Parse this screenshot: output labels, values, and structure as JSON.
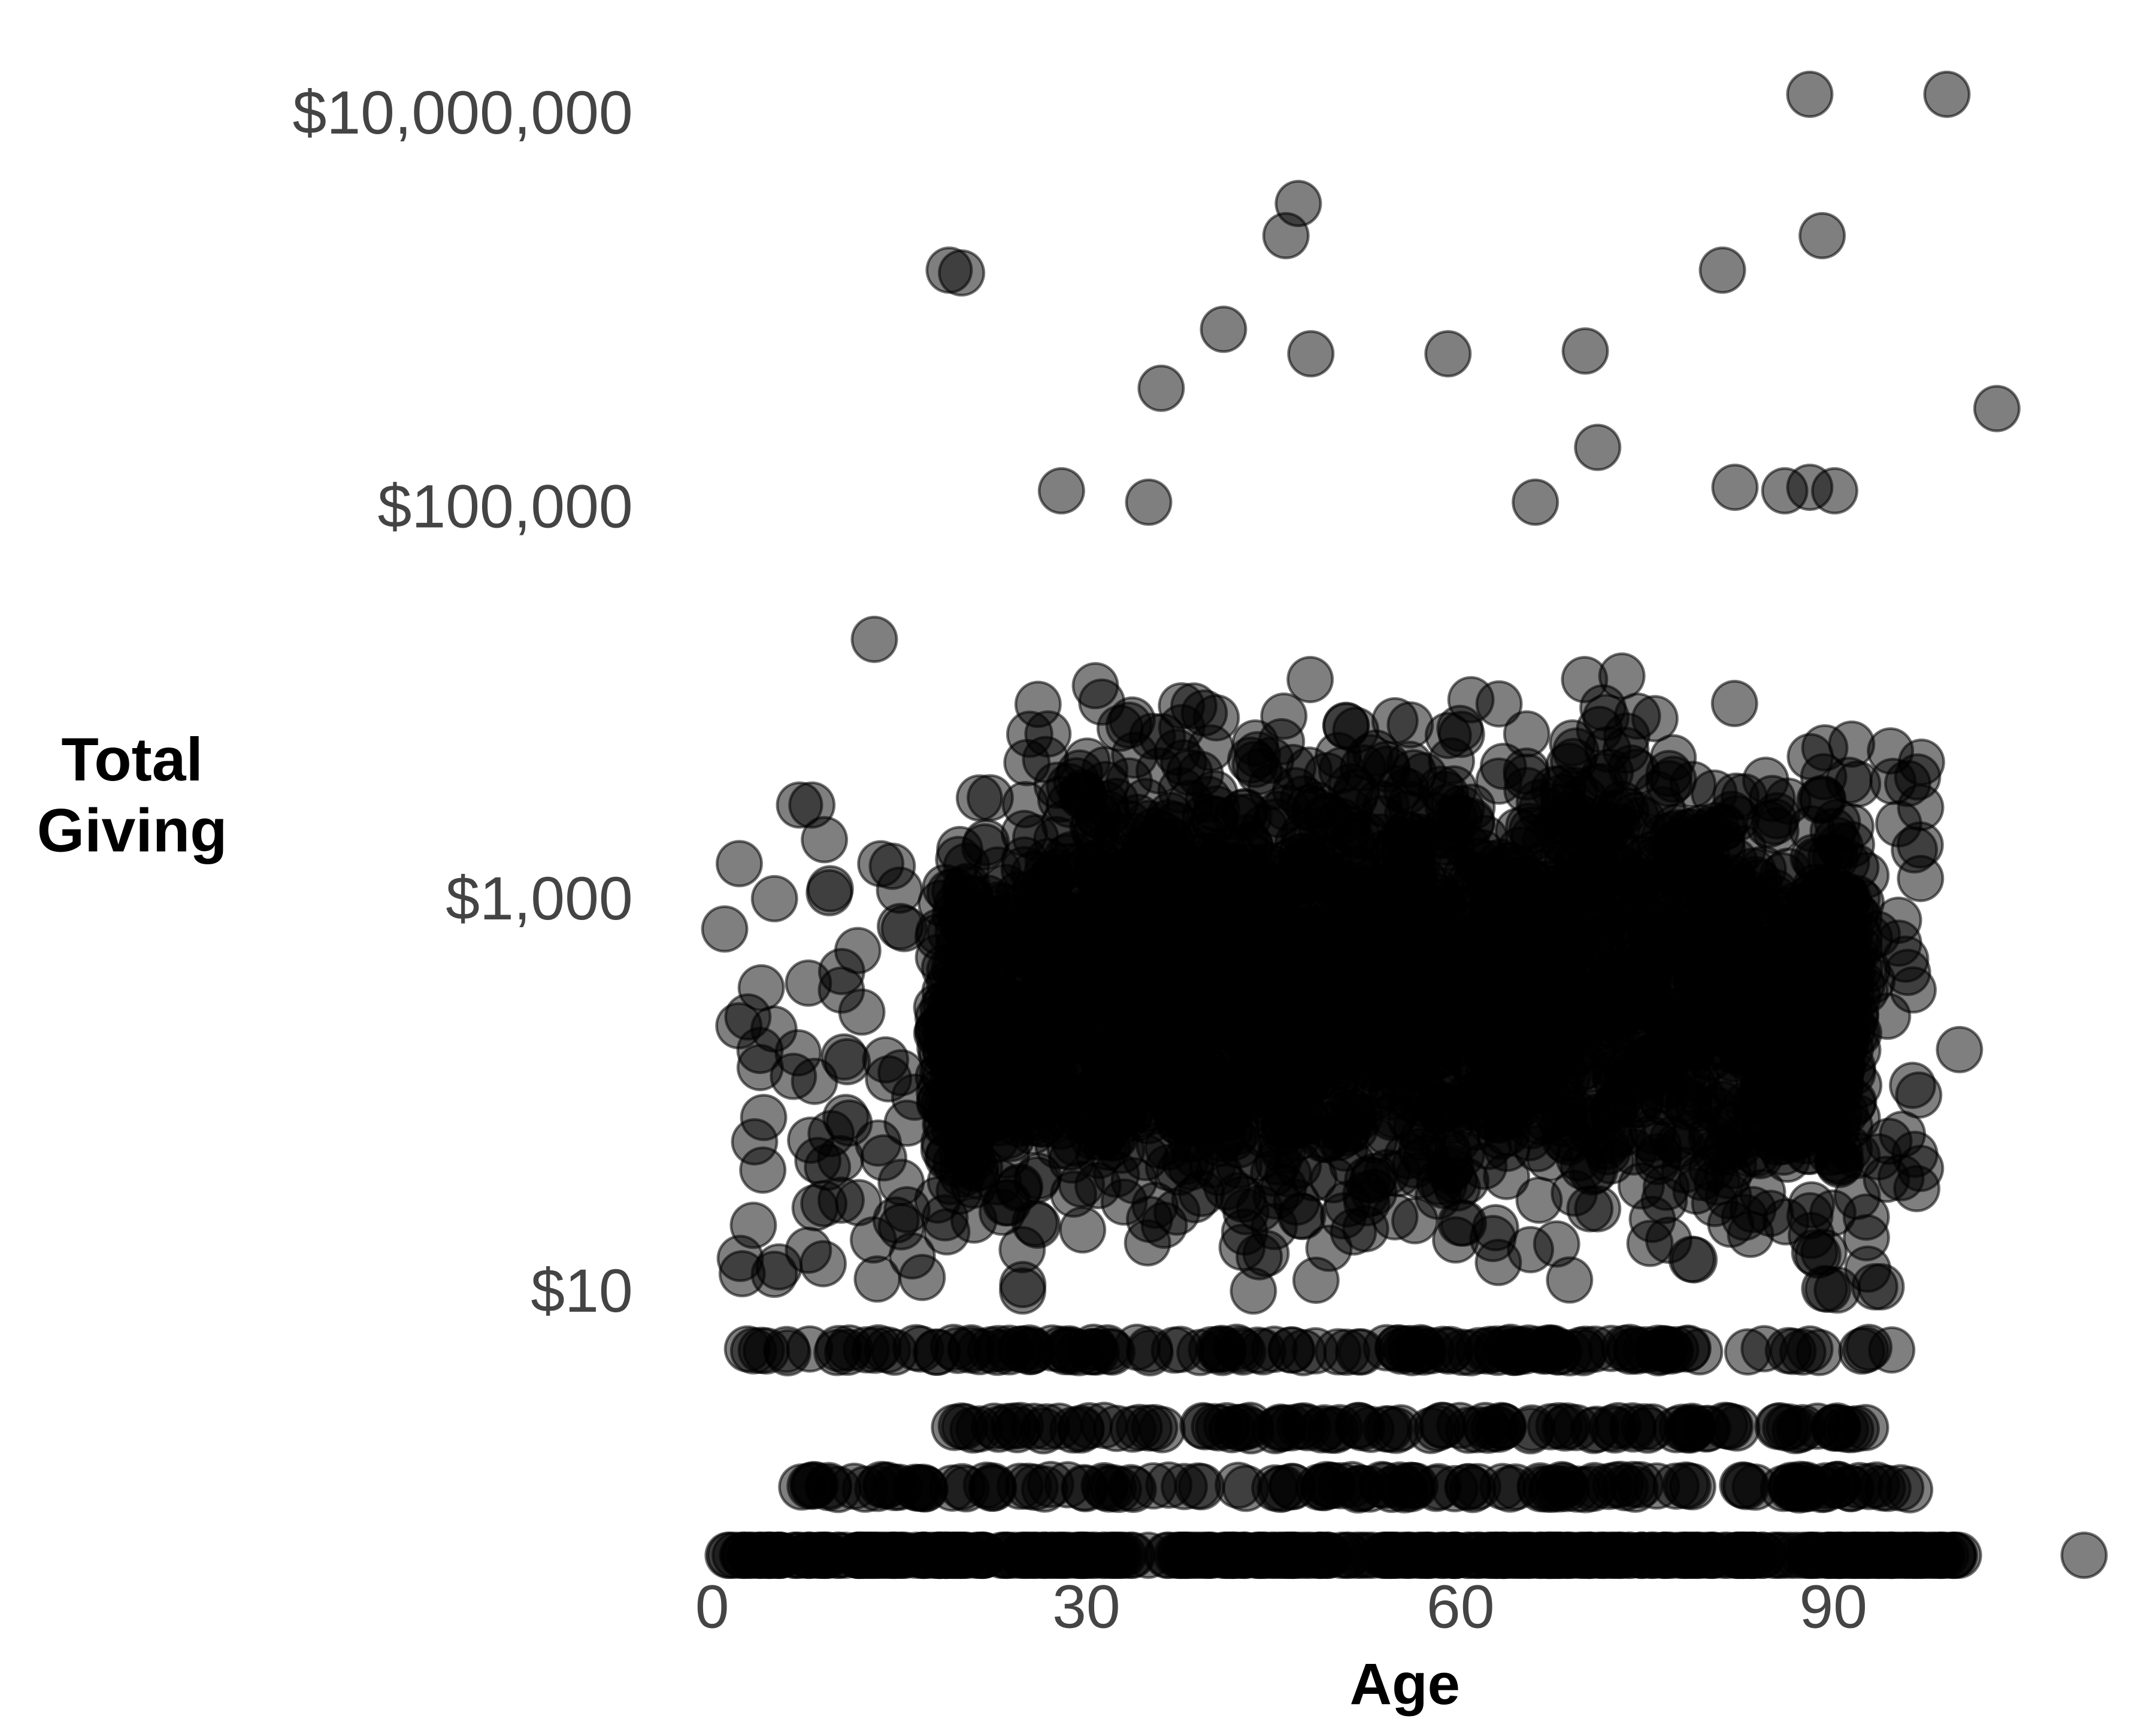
{
  "chart_data": {
    "type": "scatter",
    "title": "",
    "xlabel": "Age",
    "ylabel": "Total Giving",
    "ylabel_lines": [
      "Total",
      "Giving"
    ],
    "x_scale": "linear",
    "y_scale": "log10",
    "xlim": [
      0,
      112
    ],
    "ylim_display": [
      "$0 (floor)",
      "$12,600,000"
    ],
    "x_ticks": [
      {
        "value": 0,
        "label": "0"
      },
      {
        "value": 30,
        "label": "30"
      },
      {
        "value": 60,
        "label": "60"
      },
      {
        "value": 90,
        "label": "90"
      }
    ],
    "y_ticks": [
      {
        "value": 10,
        "label": "$10"
      },
      {
        "value": 1000,
        "label": "$1,000"
      },
      {
        "value": 100000,
        "label": "$100,000"
      },
      {
        "value": 10000000,
        "label": "$10,000,000"
      }
    ],
    "grid": false,
    "legend": null,
    "point_style": {
      "color": "#000000",
      "fill_opacity": 0.5,
      "stroke_opacity": 0.55,
      "radius_px": 37
    },
    "outliers": [
      {
        "age": 88,
        "total_giving": 12600000
      },
      {
        "age": 99,
        "total_giving": 12600000
      },
      {
        "age": 47,
        "total_giving": 3500000
      },
      {
        "age": 46,
        "total_giving": 2400000
      },
      {
        "age": 89,
        "total_giving": 2400000
      },
      {
        "age": 19,
        "total_giving": 1600000
      },
      {
        "age": 20,
        "total_giving": 1550000
      },
      {
        "age": 81,
        "total_giving": 1600000
      },
      {
        "age": 41,
        "total_giving": 800000
      },
      {
        "age": 48,
        "total_giving": 600000
      },
      {
        "age": 59,
        "total_giving": 600000
      },
      {
        "age": 70,
        "total_giving": 620000
      },
      {
        "age": 36,
        "total_giving": 400000
      },
      {
        "age": 103,
        "total_giving": 315000
      },
      {
        "age": 71,
        "total_giving": 200000
      },
      {
        "age": 28,
        "total_giving": 120000
      },
      {
        "age": 35,
        "total_giving": 105000
      },
      {
        "age": 66,
        "total_giving": 105000
      },
      {
        "age": 82,
        "total_giving": 125000
      },
      {
        "age": 86,
        "total_giving": 120000
      },
      {
        "age": 88,
        "total_giving": 125000
      },
      {
        "age": 90,
        "total_giving": 120000
      },
      {
        "age": 13,
        "total_giving": 21000
      },
      {
        "age": 1,
        "total_giving": 700
      },
      {
        "age": 5,
        "total_giving": 1000
      },
      {
        "age": 7,
        "total_giving": 3000
      },
      {
        "age": 8,
        "total_giving": 3000
      },
      {
        "age": 9,
        "total_giving": 2000
      },
      {
        "age": 110,
        "total_giving": 0
      },
      {
        "age": 100,
        "total_giving": 170
      }
    ],
    "dense_region": {
      "age_range": [
        18,
        92
      ],
      "total_giving_range": [
        10,
        50000
      ],
      "description": "Thousands of overlapping points; heaviest between ages 20-80 and $10-$5,000"
    },
    "horizontal_bands": [
      {
        "total_giving": 5,
        "age_range": [
          2,
          95
        ]
      },
      {
        "total_giving": 2,
        "age_range": [
          19,
          93
        ]
      },
      {
        "total_giving": 1,
        "age_range": [
          7,
          97
        ]
      },
      {
        "total_giving": 0,
        "age_range": [
          1,
          100
        ],
        "note": "zero givers at bottom floor"
      }
    ]
  }
}
